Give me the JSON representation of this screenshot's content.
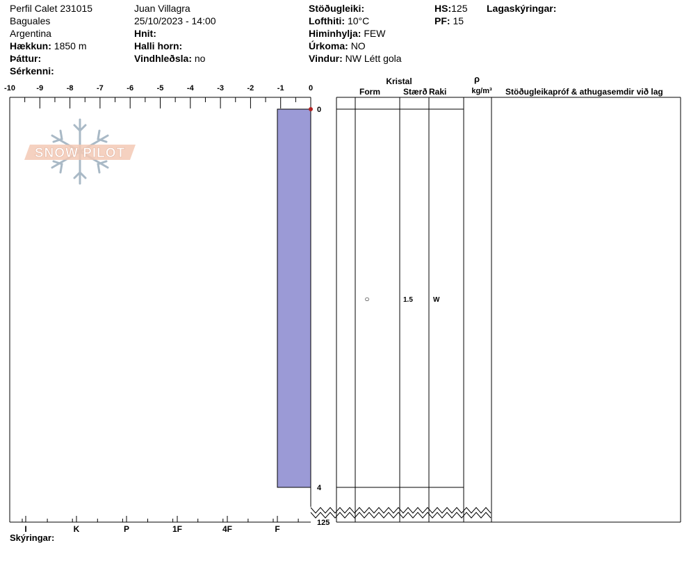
{
  "header": {
    "col1": {
      "title": "Perfil Calet 231015",
      "location": "Baguales",
      "country": "Argentina",
      "elevation_label": "Hækkun:",
      "elevation_value": "1850 m",
      "aspect_label": "Þáttur:",
      "specifics_label": "Sérkenni:"
    },
    "col2": {
      "observer": "Juan Villagra",
      "datetime": "25/10/2023 - 14:00",
      "coords_label": "Hnit:",
      "slope_label": "Halli horn:",
      "wind_loading_label": "Vindhleðsla:",
      "wind_loading_value": "no"
    },
    "col3": {
      "stability_label": "Stöðugleiki:",
      "air_temp_label": "Lofthiti:",
      "air_temp_value": "10°C",
      "sky_label": "Himinhylja:",
      "sky_value": "FEW",
      "precip_label": "Úrkoma:",
      "precip_value": "NO",
      "wind_label": "Vindur:",
      "wind_value": "NW Létt gola"
    },
    "col4": {
      "hs_label": "HS:",
      "hs_value": "125",
      "pf_label": "PF:",
      "pf_value": "15"
    },
    "col5": {
      "layer_notes_label": "Lagaskýringar:"
    }
  },
  "logo_text": "SNOW PILOT",
  "legend_label": "Skýringar:",
  "table": {
    "crystal_header": "Kristal",
    "form_header": "Form",
    "size_header": "Stærð",
    "moisture_header": "Raki",
    "density_symbol": "ρ",
    "density_unit": "kg/m³",
    "comments_header": "Stöðugleikapróf & athugasemdir við lag",
    "rows": [
      {
        "form_symbol": "○",
        "size": "1.5",
        "moisture": "W"
      }
    ]
  },
  "chart_data": {
    "type": "bar",
    "x_axis_top": {
      "ticks": [
        -10,
        -9,
        -8,
        -7,
        -6,
        -5,
        -4,
        -3,
        -2,
        -1,
        0
      ],
      "range": [
        -10,
        0
      ]
    },
    "hardness_axis": {
      "ticks": [
        "I",
        "K",
        "P",
        "1F",
        "4F",
        "F"
      ]
    },
    "depth_labels": {
      "top": "0",
      "layer_bottom": "4",
      "total": "125"
    },
    "temperature_points": [
      {
        "temp": 0,
        "depth": 0
      }
    ],
    "layers": [
      {
        "top": 0,
        "bottom": 4,
        "hardness": "F"
      }
    ],
    "colors": {
      "layer_fill": "#9b9ad6",
      "temp_point": "#b22222"
    }
  }
}
